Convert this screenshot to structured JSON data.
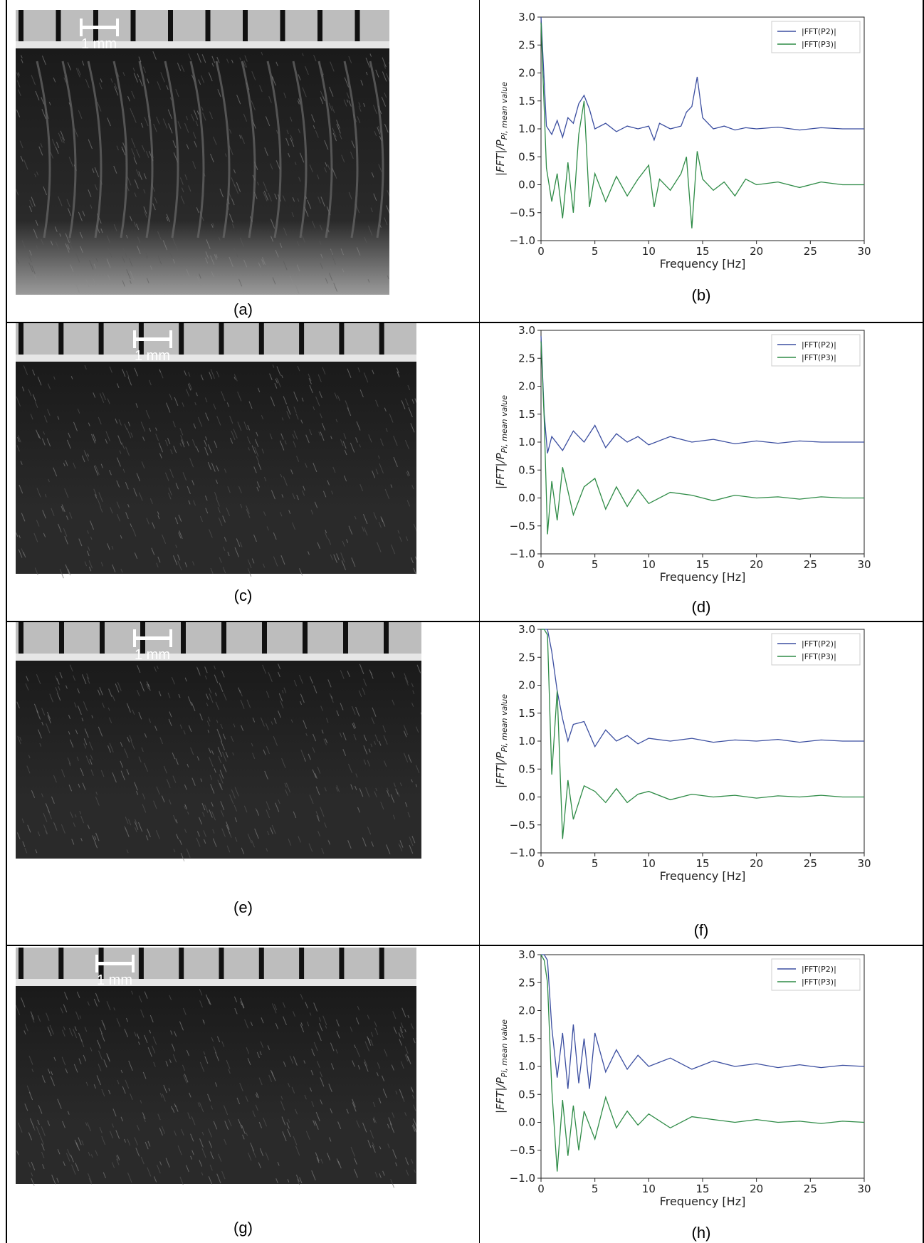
{
  "panels": [
    {
      "photo_caption": "(a)",
      "scale_label": "1 mm",
      "chart_caption": "(b)",
      "chart_data": {
        "type": "line",
        "xlabel": "Frequency [Hz]",
        "ylabel_main": "|FFT|/P",
        "ylabel_sub": "Pi, mean value",
        "xlim": [
          0,
          30
        ],
        "ylim": [
          -1.0,
          3.0
        ],
        "x_ticks": [
          "0",
          "5",
          "10",
          "15",
          "20",
          "25",
          "30"
        ],
        "y_ticks": [
          "−1.0",
          "−0.5",
          "0.0",
          "0.5",
          "1.0",
          "1.5",
          "2.0",
          "2.5",
          "3.0"
        ],
        "legend": "top-right",
        "grid": false,
        "series": [
          {
            "name": "|FFT(P2)|",
            "color": "#3b4ea0",
            "x": [
              0,
              0.5,
              1,
              1.5,
              2,
              2.5,
              3,
              3.5,
              4,
              4.5,
              5,
              6,
              7,
              8,
              9,
              10,
              10.5,
              11,
              12,
              13,
              13.5,
              14,
              14.5,
              15,
              16,
              17,
              18,
              19,
              20,
              22,
              24,
              26,
              28,
              30
            ],
            "y": [
              3.0,
              1.05,
              0.9,
              1.15,
              0.85,
              1.2,
              1.1,
              1.45,
              1.6,
              1.35,
              1.0,
              1.1,
              0.95,
              1.05,
              1.0,
              1.05,
              0.8,
              1.1,
              1.0,
              1.05,
              1.3,
              1.4,
              1.93,
              1.2,
              1.0,
              1.05,
              0.98,
              1.02,
              1.0,
              1.03,
              0.98,
              1.02,
              1.0,
              1.0
            ]
          },
          {
            "name": "|FFT(P3)|",
            "color": "#2e8b46",
            "x": [
              0,
              0.5,
              1,
              1.5,
              2,
              2.5,
              3,
              3.5,
              4,
              4.5,
              5,
              6,
              7,
              8,
              9,
              10,
              10.5,
              11,
              12,
              13,
              13.5,
              14,
              14.5,
              15,
              16,
              17,
              18,
              19,
              20,
              22,
              24,
              26,
              28,
              30
            ],
            "y": [
              2.9,
              0.3,
              -0.3,
              0.2,
              -0.6,
              0.4,
              -0.5,
              0.9,
              1.5,
              -0.4,
              0.2,
              -0.3,
              0.15,
              -0.2,
              0.1,
              0.35,
              -0.4,
              0.1,
              -0.1,
              0.2,
              0.5,
              -0.78,
              0.6,
              0.1,
              -0.1,
              0.05,
              -0.2,
              0.1,
              0.0,
              0.05,
              -0.05,
              0.05,
              0.0,
              0.0
            ]
          }
        ]
      }
    },
    {
      "photo_caption": "(c)",
      "scale_label": "1 mm",
      "chart_caption": "(d)",
      "chart_data": {
        "type": "line",
        "xlabel": "Frequency [Hz]",
        "ylabel_main": "|FFT|/P",
        "ylabel_sub": "Pi, mean value",
        "xlim": [
          0,
          30
        ],
        "ylim": [
          -1.0,
          3.0
        ],
        "x_ticks": [
          "0",
          "5",
          "10",
          "15",
          "20",
          "25",
          "30"
        ],
        "y_ticks": [
          "−1.0",
          "−0.5",
          "0.0",
          "0.5",
          "1.0",
          "1.5",
          "2.0",
          "2.5",
          "3.0"
        ],
        "legend": "top-right",
        "grid": false,
        "series": [
          {
            "name": "|FFT(P2)|",
            "color": "#3b4ea0",
            "x": [
              0,
              0.3,
              0.6,
              1,
              2,
              3,
              4,
              5,
              6,
              7,
              8,
              9,
              10,
              12,
              14,
              16,
              18,
              20,
              22,
              24,
              26,
              28,
              30
            ],
            "y": [
              2.9,
              1.5,
              0.8,
              1.1,
              0.85,
              1.2,
              1.0,
              1.3,
              0.9,
              1.15,
              1.0,
              1.1,
              0.95,
              1.1,
              1.0,
              1.05,
              0.97,
              1.02,
              0.98,
              1.02,
              1.0,
              1.0,
              1.0
            ]
          },
          {
            "name": "|FFT(P3)|",
            "color": "#2e8b46",
            "x": [
              0,
              0.3,
              0.6,
              1,
              1.5,
              2,
              3,
              4,
              5,
              6,
              7,
              8,
              9,
              10,
              12,
              14,
              16,
              18,
              20,
              22,
              24,
              26,
              28,
              30
            ],
            "y": [
              2.8,
              1.4,
              -0.65,
              0.3,
              -0.4,
              0.55,
              -0.3,
              0.2,
              0.35,
              -0.2,
              0.2,
              -0.15,
              0.15,
              -0.1,
              0.1,
              0.05,
              -0.05,
              0.05,
              0.0,
              0.02,
              -0.02,
              0.02,
              0.0,
              0.0
            ]
          }
        ]
      }
    },
    {
      "photo_caption": "(e)",
      "scale_label": "1 mm",
      "chart_caption": "(f)",
      "chart_data": {
        "type": "line",
        "xlabel": "Frequency [Hz]",
        "ylabel_main": "|FFT|/P",
        "ylabel_sub": "Pi, mean value",
        "xlim": [
          0,
          30
        ],
        "ylim": [
          -1.0,
          3.0
        ],
        "x_ticks": [
          "0",
          "5",
          "10",
          "15",
          "20",
          "25",
          "30"
        ],
        "y_ticks": [
          "−1.0",
          "−0.5",
          "0.0",
          "0.5",
          "1.0",
          "1.5",
          "2.0",
          "2.5",
          "3.0"
        ],
        "legend": "top-right",
        "grid": false,
        "series": [
          {
            "name": "|FFT(P2)|",
            "color": "#3b4ea0",
            "x": [
              0,
              0.3,
              0.6,
              1,
              1.5,
              2,
              2.5,
              3,
              4,
              5,
              6,
              7,
              8,
              9,
              10,
              12,
              14,
              16,
              18,
              20,
              22,
              24,
              26,
              28,
              30
            ],
            "y": [
              3.0,
              3.0,
              3.0,
              2.6,
              1.9,
              1.4,
              1.0,
              1.3,
              1.35,
              0.9,
              1.2,
              1.0,
              1.1,
              0.95,
              1.05,
              1.0,
              1.05,
              0.98,
              1.02,
              1.0,
              1.03,
              0.98,
              1.02,
              1.0,
              1.0
            ]
          },
          {
            "name": "|FFT(P3)|",
            "color": "#2e8b46",
            "x": [
              0,
              0.3,
              0.6,
              1,
              1.5,
              2,
              2.5,
              3,
              4,
              5,
              6,
              7,
              8,
              9,
              10,
              12,
              14,
              16,
              18,
              20,
              22,
              24,
              26,
              28,
              30
            ],
            "y": [
              3.0,
              3.0,
              2.9,
              0.4,
              1.9,
              -0.75,
              0.3,
              -0.4,
              0.2,
              0.1,
              -0.1,
              0.15,
              -0.1,
              0.05,
              0.1,
              -0.05,
              0.05,
              0.0,
              0.03,
              -0.02,
              0.02,
              0.0,
              0.03,
              0.0,
              0.0
            ]
          }
        ]
      }
    },
    {
      "photo_caption": "(g)",
      "scale_label": "1 mm",
      "chart_caption": "(h)",
      "chart_data": {
        "type": "line",
        "xlabel": "Frequency [Hz]",
        "ylabel_main": "|FFT|/P",
        "ylabel_sub": "Pi, mean value",
        "xlim": [
          0,
          30
        ],
        "ylim": [
          -1.0,
          3.0
        ],
        "x_ticks": [
          "0",
          "5",
          "10",
          "15",
          "20",
          "25",
          "30"
        ],
        "y_ticks": [
          "−1.0",
          "−0.5",
          "0.0",
          "0.5",
          "1.0",
          "1.5",
          "2.0",
          "2.5",
          "3.0"
        ],
        "legend": "top-right",
        "grid": false,
        "series": [
          {
            "name": "|FFT(P2)|",
            "color": "#3b4ea0",
            "x": [
              0,
              0.3,
              0.6,
              1,
              1.5,
              2,
              2.5,
              3,
              3.5,
              4,
              4.5,
              5,
              6,
              7,
              8,
              9,
              10,
              12,
              14,
              16,
              18,
              20,
              22,
              24,
              26,
              28,
              30
            ],
            "y": [
              3.0,
              3.0,
              2.9,
              1.7,
              0.8,
              1.6,
              0.6,
              1.75,
              0.7,
              1.5,
              0.6,
              1.6,
              0.9,
              1.3,
              0.95,
              1.2,
              1.0,
              1.15,
              0.95,
              1.1,
              1.0,
              1.05,
              0.98,
              1.03,
              0.98,
              1.02,
              1.0
            ]
          },
          {
            "name": "|FFT(P3)|",
            "color": "#2e8b46",
            "x": [
              0,
              0.3,
              0.6,
              1,
              1.5,
              2,
              2.5,
              3,
              3.5,
              4,
              5,
              6,
              7,
              8,
              9,
              10,
              12,
              14,
              16,
              18,
              20,
              22,
              24,
              26,
              28,
              30
            ],
            "y": [
              3.0,
              2.9,
              2.5,
              0.6,
              -0.88,
              0.4,
              -0.6,
              0.3,
              -0.5,
              0.2,
              -0.3,
              0.45,
              -0.1,
              0.2,
              -0.05,
              0.15,
              -0.1,
              0.1,
              0.05,
              0.0,
              0.05,
              0.0,
              0.02,
              -0.02,
              0.02,
              0.0
            ]
          }
        ]
      }
    }
  ]
}
